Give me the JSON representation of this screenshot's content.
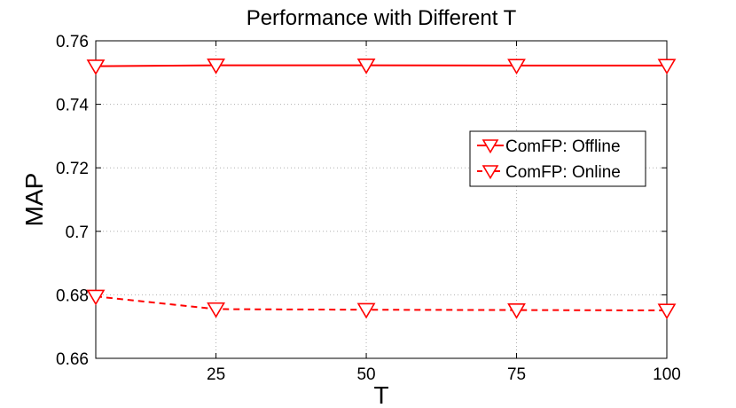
{
  "chart_data": {
    "type": "line",
    "title": "Performance with Different T",
    "xlabel": "T",
    "ylabel": "MAP",
    "x": [
      5,
      25,
      50,
      75,
      100
    ],
    "xlim": [
      5,
      100
    ],
    "ylim": [
      0.66,
      0.76
    ],
    "xticks": [
      25,
      50,
      75,
      100
    ],
    "xtick_labels": [
      "25",
      "50",
      "75",
      "100"
    ],
    "yticks": [
      0.66,
      0.68,
      0.7,
      0.72,
      0.74,
      0.76
    ],
    "ytick_labels": [
      "0.66",
      "0.68",
      "0.7",
      "0.72",
      "0.74",
      "0.76"
    ],
    "grid": true,
    "legend_position": "right",
    "series": [
      {
        "name": "ComFP: Offline",
        "values": [
          0.752,
          0.7523,
          0.7523,
          0.7522,
          0.7522
        ],
        "color": "#ff0000",
        "line_style": "solid",
        "marker": "triangle-down"
      },
      {
        "name": "ComFP: Online",
        "values": [
          0.6795,
          0.6755,
          0.6753,
          0.6752,
          0.6751
        ],
        "color": "#ff0000",
        "line_style": "dashed",
        "marker": "triangle-down"
      }
    ]
  }
}
